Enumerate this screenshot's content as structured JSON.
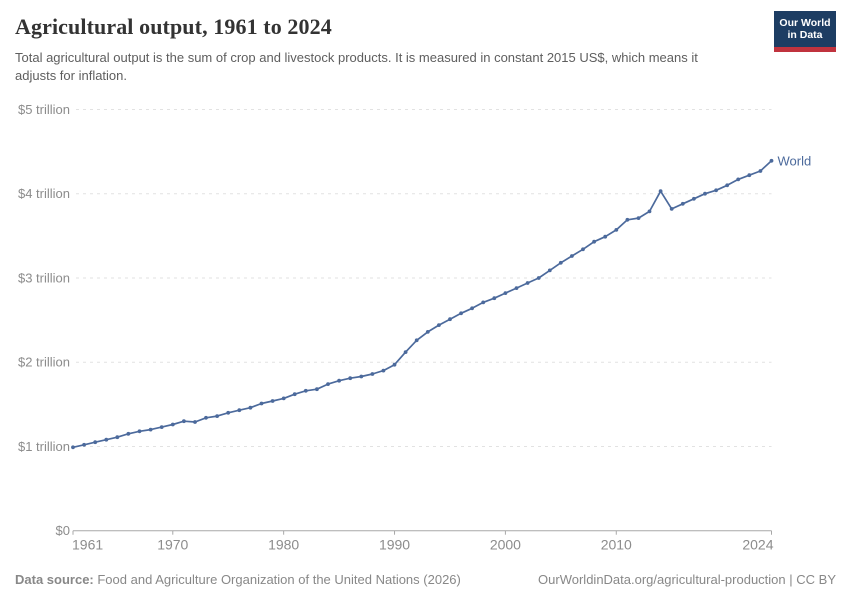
{
  "header": {
    "title": "Agricultural output, 1961 to 2024",
    "subtitle": "Total agricultural output is the sum of crop and livestock products. It is measured in constant 2015 US$, which means it adjusts for inflation.",
    "logo": {
      "line1": "Our World",
      "line2": "in Data"
    }
  },
  "chart_data": {
    "type": "line",
    "title": "Agricultural output, 1961 to 2024",
    "unit": "constant 2015 US$, trillions",
    "x": [
      1961,
      1962,
      1963,
      1964,
      1965,
      1966,
      1967,
      1968,
      1969,
      1970,
      1971,
      1972,
      1973,
      1974,
      1975,
      1976,
      1977,
      1978,
      1979,
      1980,
      1981,
      1982,
      1983,
      1984,
      1985,
      1986,
      1987,
      1988,
      1989,
      1990,
      1991,
      1992,
      1993,
      1994,
      1995,
      1996,
      1997,
      1998,
      1999,
      2000,
      2001,
      2002,
      2003,
      2004,
      2005,
      2006,
      2007,
      2008,
      2009,
      2010,
      2011,
      2012,
      2013,
      2014,
      2015,
      2016,
      2017,
      2018,
      2019,
      2020,
      2021,
      2022,
      2023,
      2024
    ],
    "series": [
      {
        "name": "World",
        "color": "#4c6a9c",
        "values": [
          0.99,
          1.02,
          1.05,
          1.08,
          1.11,
          1.15,
          1.18,
          1.2,
          1.23,
          1.26,
          1.3,
          1.29,
          1.34,
          1.36,
          1.4,
          1.43,
          1.46,
          1.51,
          1.54,
          1.57,
          1.62,
          1.66,
          1.68,
          1.74,
          1.78,
          1.81,
          1.83,
          1.86,
          1.9,
          1.97,
          2.12,
          2.26,
          2.36,
          2.44,
          2.51,
          2.58,
          2.64,
          2.71,
          2.76,
          2.82,
          2.88,
          2.94,
          3.0,
          3.09,
          3.18,
          3.26,
          3.34,
          3.43,
          3.49,
          3.57,
          3.69,
          3.71,
          3.79,
          4.03,
          3.82,
          3.88,
          3.94,
          4.0,
          4.04,
          4.1,
          4.17,
          4.22,
          4.27,
          4.39
        ]
      }
    ],
    "end_label": "World",
    "ylim": [
      0,
      5
    ],
    "yticks": [
      {
        "value": 5,
        "label": "$5 trillion"
      },
      {
        "value": 4,
        "label": "$4 trillion"
      },
      {
        "value": 3,
        "label": "$3 trillion"
      },
      {
        "value": 2,
        "label": "$2 trillion"
      },
      {
        "value": 1,
        "label": "$1 trillion"
      },
      {
        "value": 0,
        "label": "$0"
      }
    ],
    "xticks": [
      1961,
      1970,
      1980,
      1990,
      2000,
      2010,
      2024
    ],
    "legend_position": "end-of-line",
    "grid": "horizontal-dashed"
  },
  "colors": {
    "line": "#4c6a9c",
    "grid": "#e2e2e2",
    "axis": "#a8a8a8",
    "tick_text": "#8c8c8c",
    "logo_bg": "#1d3d63",
    "logo_stripe": "#c0333e"
  },
  "footer": {
    "datasource_label": "Data source:",
    "datasource_text": " Food and Agriculture Organization of the United Nations (2026)",
    "link": "OurWorldinData.org/agricultural-production",
    "separator": " | ",
    "license": "CC BY"
  }
}
